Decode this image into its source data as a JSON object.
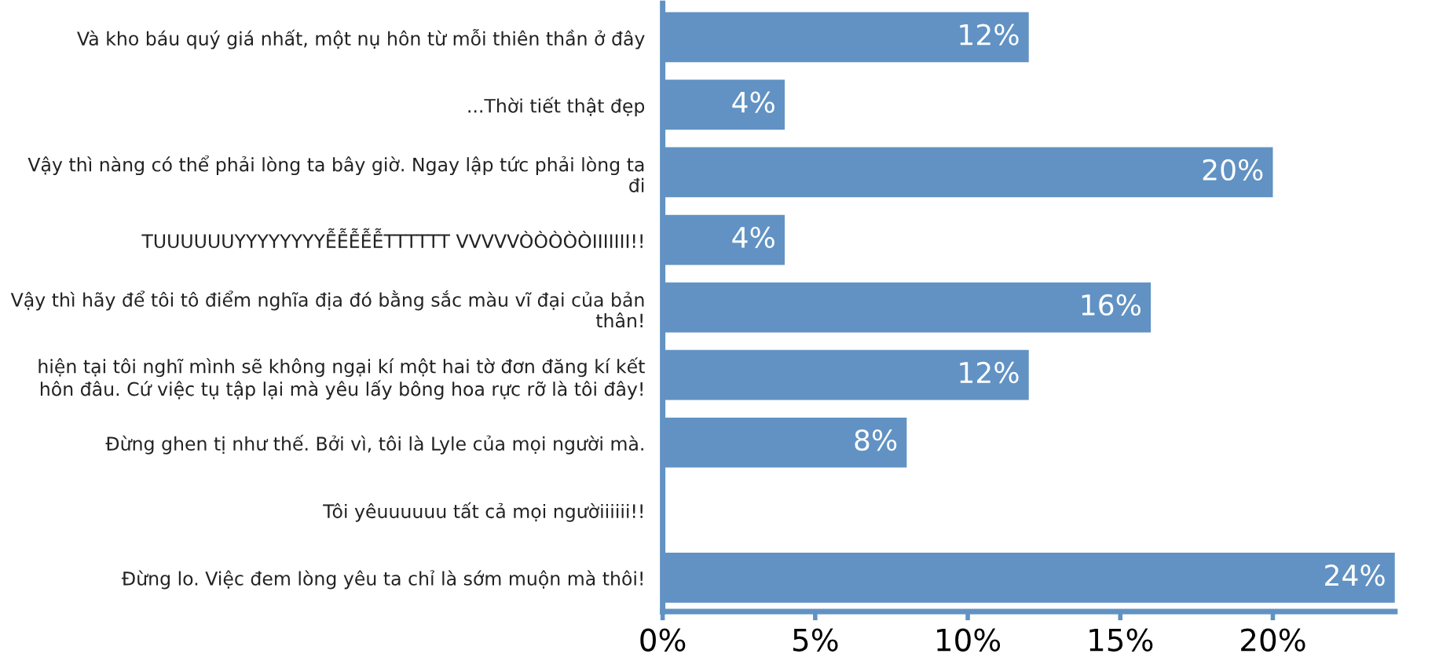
{
  "chart_data": {
    "type": "bar",
    "orientation": "horizontal",
    "categories": [
      "Và kho báu quý giá nhất, một nụ hôn từ mỗi thiên thần ở đây",
      "...Thời tiết thật đẹp",
      "Vậy thì nàng có thể phải lòng ta bây giờ. Ngay lập tức phải lòng ta đi",
      "TUUUUUUYYYYYYYYỄỄỄỄỄTTTTTT VVVVVÒÒÒÒÒIIIIIII!!",
      "Vậy thì hãy để tôi tô điểm nghĩa địa đó bằng sắc màu vĩ đại của bản thân!",
      "hiện tại tôi nghĩ mình sẽ không ngại kí một hai tờ đơn đăng kí kết hôn đâu. Cứ việc tụ tập lại mà yêu lấy bông hoa rực rỡ là tôi đây!",
      "Đừng ghen tị như thế. Bởi vì, tôi là Lyle của mọi người mà.",
      "Tôi yêuuuuuu tất cả mọi ngườiiiiii!!",
      "Đừng lo. Việc đem lòng yêu ta chỉ là sớm muộn mà thôi!"
    ],
    "values": [
      12,
      4,
      20,
      4,
      16,
      12,
      8,
      0,
      24
    ],
    "value_labels": [
      "12%",
      "4%",
      "20%",
      "4%",
      "16%",
      "12%",
      "8%",
      null,
      "24%"
    ],
    "color": "#6192c3",
    "xlim": [
      0,
      24
    ],
    "xticks": [
      {
        "value": 0,
        "label": "0%"
      },
      {
        "value": 5,
        "label": "5%"
      },
      {
        "value": 10,
        "label": "10%"
      },
      {
        "value": 15,
        "label": "15%"
      },
      {
        "value": 20,
        "label": "20%"
      }
    ],
    "grid": false,
    "legend": false
  }
}
